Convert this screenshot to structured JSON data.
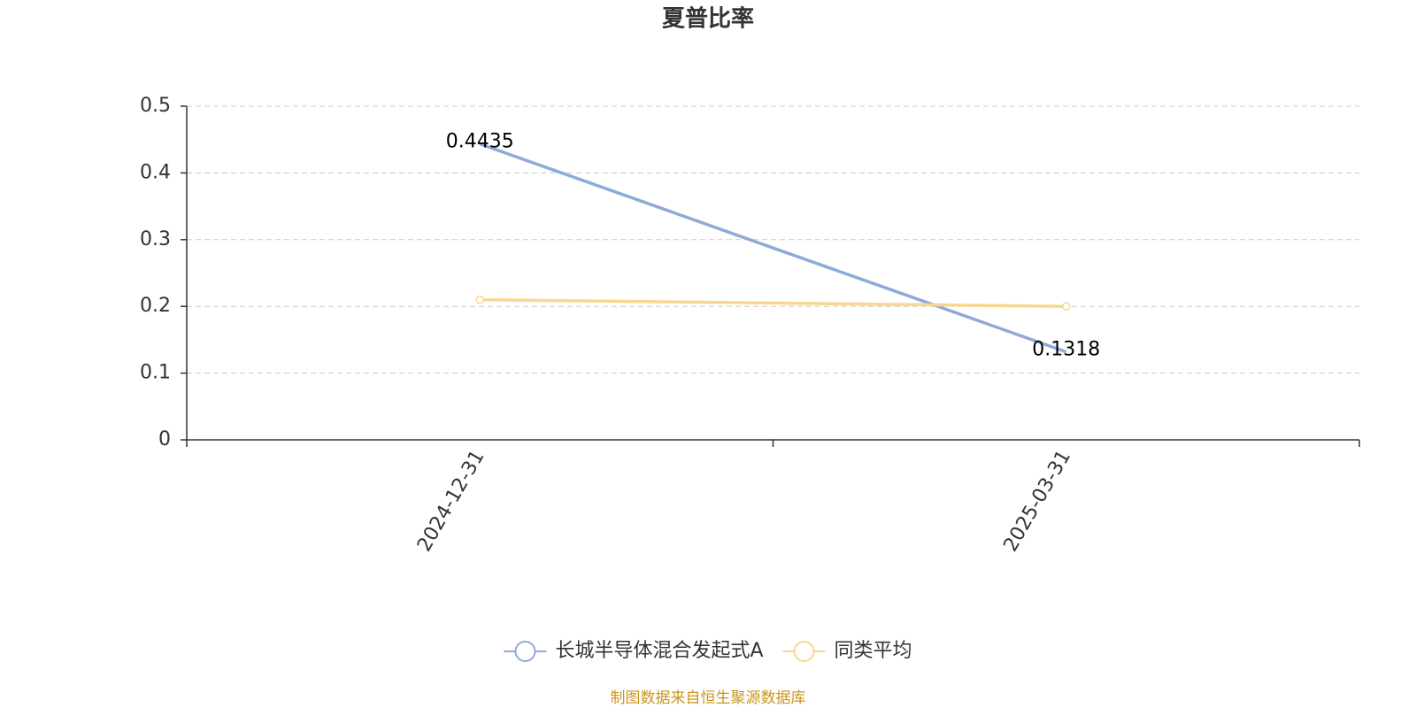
{
  "chart_data": {
    "type": "line",
    "title": "夏普比率",
    "categories": [
      "2024-12-31",
      "2025-03-31"
    ],
    "series": [
      {
        "name": "长城半导体混合发起式A",
        "color": "#8eaad9",
        "values": [
          0.4435,
          0.1318
        ],
        "show_labels": true,
        "show_symbols": false
      },
      {
        "name": "同类平均",
        "color": "#f8d690",
        "values": [
          0.21,
          0.2
        ],
        "show_labels": false,
        "show_symbols": true
      }
    ],
    "ylim": [
      0,
      0.5
    ],
    "yticks": [
      0,
      0.1,
      0.2,
      0.3,
      0.4,
      0.5
    ],
    "grid": true,
    "legend": "bottom",
    "source": "制图数据来自恒生聚源数据库"
  }
}
